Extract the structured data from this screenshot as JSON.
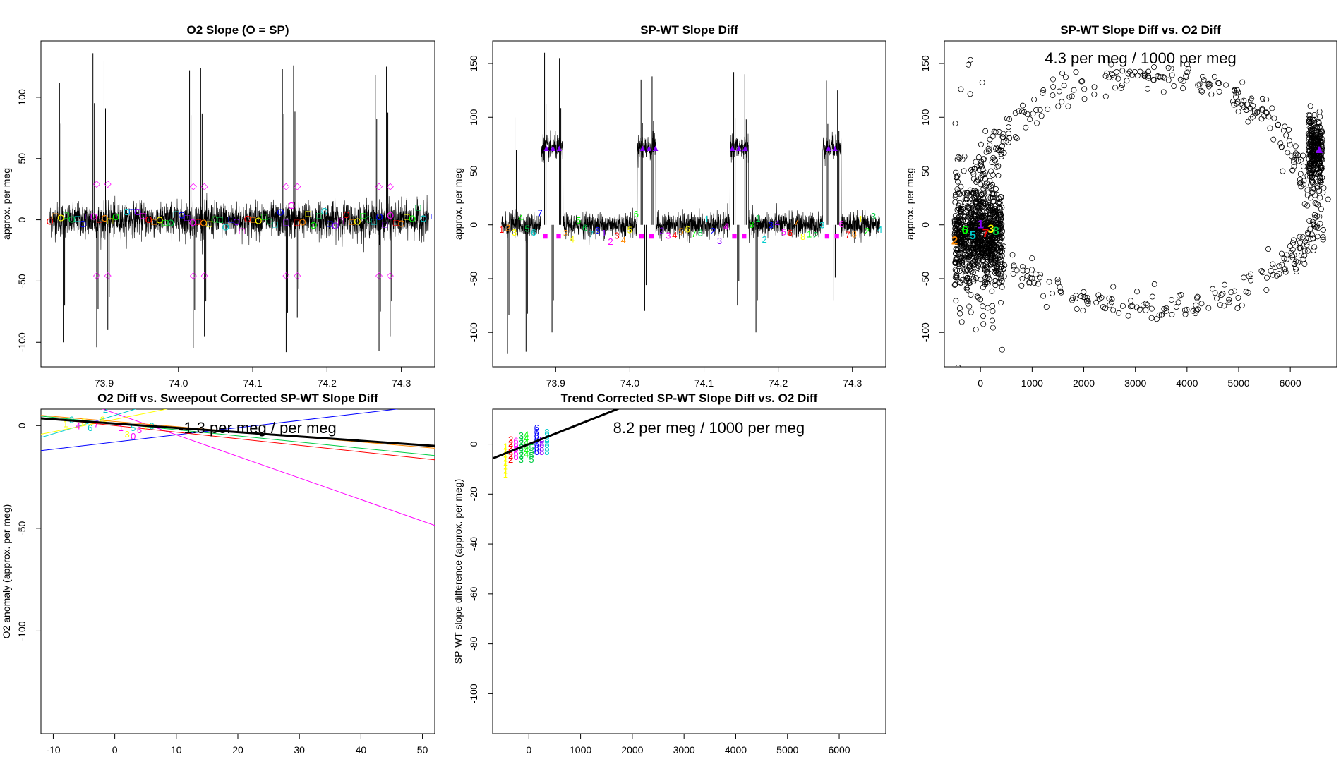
{
  "palette": [
    "#ff0000",
    "#ff8800",
    "#ffff00",
    "#00ff00",
    "#00cc44",
    "#00cccc",
    "#0000ff",
    "#8800ff",
    "#ff00ff"
  ],
  "chart_data": [
    {
      "id": "p1",
      "type": "line",
      "title": "O2 Slope (O = SP)",
      "xlabel": "",
      "ylabel": "approx. per meg",
      "xlim": [
        73.815,
        74.345
      ],
      "ylim": [
        -120,
        146
      ],
      "xticks": [
        73.9,
        74.0,
        74.1,
        74.2,
        74.3
      ],
      "xtick_labels": [
        "73.9",
        "74.0",
        "74.1",
        "74.2",
        "74.3"
      ],
      "yticks": [
        -100,
        -50,
        0,
        50,
        100
      ],
      "ytick_labels": [
        "-100",
        "-50",
        "0",
        "50",
        "100"
      ],
      "series": [
        {
          "name": "O2 slope",
          "noise_band": 10
        }
      ],
      "spikes": [
        [
          73.84,
          112
        ],
        [
          73.845,
          -100
        ],
        [
          73.885,
          136
        ],
        [
          73.89,
          -104
        ],
        [
          73.9,
          130
        ],
        [
          73.905,
          -90
        ],
        [
          74.015,
          122
        ],
        [
          74.02,
          -105
        ],
        [
          74.03,
          124
        ],
        [
          74.035,
          -95
        ],
        [
          74.14,
          123
        ],
        [
          74.145,
          -108
        ],
        [
          74.155,
          126
        ],
        [
          74.16,
          -80
        ],
        [
          74.265,
          118
        ],
        [
          74.27,
          -107
        ],
        [
          74.28,
          125
        ],
        [
          74.285,
          -95
        ]
      ],
      "markers": {
        "symbols": [
          "O",
          "□"
        ],
        "level": 0,
        "plateaus": [
          [
            73.89,
            30,
            -45
          ],
          [
            73.905,
            30,
            -45
          ],
          [
            74.02,
            28,
            -45
          ],
          [
            74.035,
            28,
            -45
          ],
          [
            74.145,
            28,
            -45
          ],
          [
            74.16,
            28,
            -45
          ],
          [
            74.27,
            28,
            -45
          ],
          [
            74.285,
            28,
            -45
          ]
        ]
      }
    },
    {
      "id": "p2",
      "type": "line",
      "title": "SP-WT Slope Diff",
      "xlabel": "",
      "ylabel": "approx. per meg",
      "xlim": [
        73.815,
        74.345
      ],
      "ylim": [
        -132,
        171
      ],
      "xticks": [
        73.9,
        74.0,
        74.1,
        74.2,
        74.3
      ],
      "xtick_labels": [
        "73.9",
        "74.0",
        "74.1",
        "74.2",
        "74.3"
      ],
      "yticks": [
        -100,
        -50,
        0,
        50,
        100,
        150
      ],
      "ytick_labels": [
        "-100",
        "-50",
        "0",
        "50",
        "100",
        "150"
      ],
      "series": [
        {
          "name": "SP-WT slope diff",
          "noise_band": 8
        }
      ],
      "spikes": [
        [
          73.835,
          -120
        ],
        [
          73.845,
          100
        ],
        [
          73.86,
          -118
        ],
        [
          73.885,
          160
        ],
        [
          73.895,
          -100
        ],
        [
          73.905,
          155
        ],
        [
          74.015,
          135
        ],
        [
          74.02,
          -80
        ],
        [
          74.03,
          138
        ],
        [
          74.14,
          142
        ],
        [
          74.145,
          -75
        ],
        [
          74.155,
          140
        ],
        [
          74.17,
          -100
        ],
        [
          74.265,
          134
        ],
        [
          74.275,
          -70
        ],
        [
          74.28,
          125
        ]
      ],
      "level_shifts": [
        [
          73.88,
          73.91,
          72
        ],
        [
          74.01,
          74.035,
          72
        ],
        [
          74.135,
          74.16,
          72
        ],
        [
          74.26,
          74.285,
          72
        ]
      ],
      "markers": {
        "digits": [
          "1",
          "2",
          "3",
          "4",
          "5",
          "6",
          "7",
          "8"
        ],
        "shifted_level": 72,
        "base_level": -10
      }
    },
    {
      "id": "p3",
      "type": "scatter",
      "title": "SP-WT Slope Diff vs. O2 Diff",
      "xlabel": "",
      "ylabel": "approx. per meg",
      "xlim": [
        -700,
        6900
      ],
      "ylim": [
        -132,
        171
      ],
      "xticks": [
        0,
        1000,
        2000,
        3000,
        4000,
        5000,
        6000
      ],
      "xtick_labels": [
        "0",
        "1000",
        "2000",
        "3000",
        "4000",
        "5000",
        "6000"
      ],
      "yticks": [
        -100,
        -50,
        0,
        50,
        100,
        150
      ],
      "ytick_labels": [
        "-100",
        "-50",
        "0",
        "50",
        "100",
        "150"
      ],
      "annotation": "4.3 per meg / 1000 per meg",
      "cluster_a": {
        "x_range": [
          -500,
          420
        ],
        "y_center": -10,
        "y_spread": 45
      },
      "cluster_b": {
        "x_range": [
          6350,
          6620
        ],
        "y_center": 70,
        "y_spread": 18
      },
      "ellipse": {
        "cx": 3200,
        "cy": 10,
        "rx": 3300,
        "ry_top": 130,
        "ry_bottom": 85
      },
      "highlight_markers": [
        [
          -500,
          -15,
          "2"
        ],
        [
          -300,
          -5,
          "6"
        ],
        [
          -150,
          -10,
          "5"
        ],
        [
          0,
          0,
          "1"
        ],
        [
          100,
          -8,
          "7"
        ],
        [
          200,
          -4,
          "3"
        ],
        [
          300,
          -6,
          "8"
        ],
        [
          6560,
          70,
          "▲"
        ]
      ]
    },
    {
      "id": "p4",
      "type": "scatter",
      "title": "O2 Diff vs. Sweepout Corrected SP-WT Slope Diff",
      "xlabel": "",
      "ylabel": "O2 anomaly (approx. per meg)",
      "xlim": [
        -12,
        52
      ],
      "ylim": [
        -150,
        8
      ],
      "xticks": [
        -10,
        0,
        10,
        20,
        30,
        40,
        50
      ],
      "xtick_labels": [
        "-10",
        "0",
        "10",
        "20",
        "30",
        "40",
        "50"
      ],
      "yticks": [
        -100,
        -50,
        0
      ],
      "ytick_labels": [
        "-100",
        "-50",
        "0"
      ],
      "annotation": "-1.3 per meg / per meg",
      "fit_line": {
        "slope": -0.21,
        "intercept": 1,
        "color": "#000000"
      },
      "colored_fits": [
        {
          "color": "#ff00ff",
          "slope": -1.05,
          "intercept": 6
        },
        {
          "color": "#0000ff",
          "slope": 0.35,
          "intercept": -8
        },
        {
          "color": "#00cc44",
          "slope": -0.3,
          "intercept": 1
        },
        {
          "color": "#00cccc",
          "slope": 0.9,
          "intercept": 5
        },
        {
          "color": "#ffff00",
          "slope": 0.6,
          "intercept": 3
        },
        {
          "color": "#ff8800",
          "slope": -0.25,
          "intercept": 2
        },
        {
          "color": "#ff0000",
          "slope": -0.32,
          "intercept": 0
        }
      ],
      "points": [
        [
          -8,
          1,
          "1"
        ],
        [
          -7,
          3,
          "3"
        ],
        [
          -6,
          0,
          "4"
        ],
        [
          -5,
          2,
          "5"
        ],
        [
          -4,
          -1,
          "6"
        ],
        [
          -3,
          1,
          "7"
        ],
        [
          -2,
          3,
          "8"
        ],
        [
          -1.5,
          8,
          "2"
        ],
        [
          1,
          -1,
          "1"
        ],
        [
          2,
          -4,
          "3"
        ],
        [
          3,
          -1,
          "5"
        ],
        [
          4,
          -2,
          "6"
        ],
        [
          5,
          -1,
          "7"
        ],
        [
          6,
          0,
          "8"
        ],
        [
          3,
          -5,
          "0"
        ]
      ]
    },
    {
      "id": "p5",
      "type": "scatter",
      "title": "Trend Corrected SP-WT Slope Diff vs. O2 Diff",
      "xlabel": "",
      "ylabel": "SP-WT slope difference (approx. per meg)",
      "xlim": [
        -700,
        6900
      ],
      "ylim": [
        -116,
        14
      ],
      "xticks": [
        0,
        1000,
        2000,
        3000,
        4000,
        5000,
        6000
      ],
      "xtick_labels": [
        "0",
        "1000",
        "2000",
        "3000",
        "4000",
        "5000",
        "6000"
      ],
      "yticks": [
        -100,
        -80,
        -60,
        -40,
        -20,
        0
      ],
      "ytick_labels": [
        "-100",
        "-80",
        "-60",
        "-40",
        "-20",
        "0"
      ],
      "annotation": "8.2 per meg / 1000 per meg",
      "fit_line": {
        "slope": 0.0082,
        "intercept": 0,
        "color": "#000000"
      },
      "columns": [
        [
          -450,
          -12,
          0,
          "#ffff00",
          "1"
        ],
        [
          -350,
          -6,
          3,
          "#ff0000",
          "2"
        ],
        [
          -250,
          -5,
          2,
          "#ff00ff",
          "6"
        ],
        [
          -150,
          -6,
          5,
          "#00cc44",
          "3"
        ],
        [
          -50,
          -4,
          5,
          "#00ff00",
          "4"
        ],
        [
          50,
          -6,
          0,
          "#00cc44",
          "5"
        ],
        [
          150,
          -3,
          8,
          "#0000ff",
          "6"
        ],
        [
          250,
          -3,
          2,
          "#8800ff",
          "8"
        ],
        [
          350,
          -3,
          6,
          "#00cccc",
          "8"
        ]
      ]
    }
  ]
}
